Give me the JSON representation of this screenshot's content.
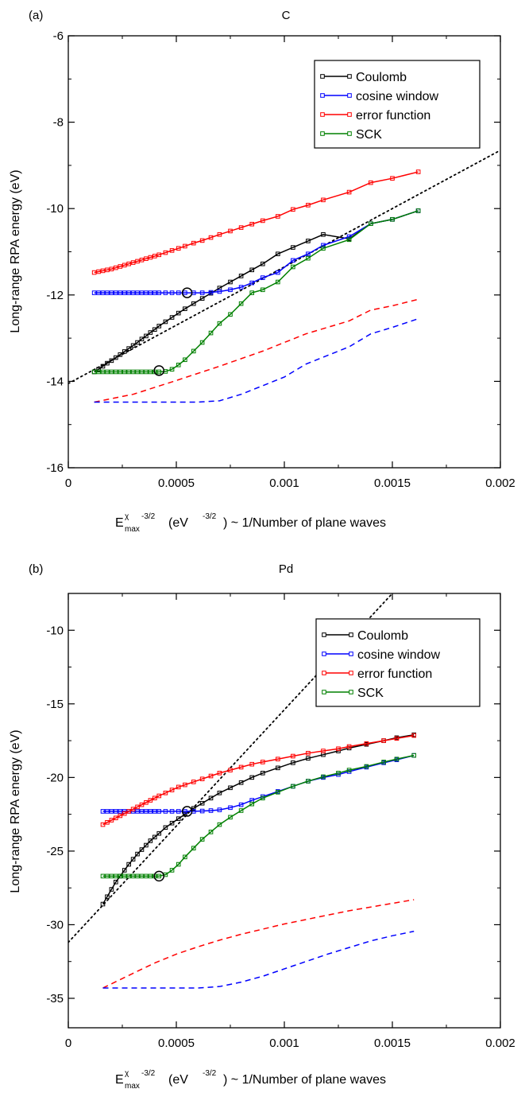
{
  "chart_data": [
    {
      "type": "line",
      "panel_label": "(a)",
      "title": "C",
      "xlabel": {
        "main": "E",
        "sup": "χ",
        "sub": "max",
        "exp": "-3/2",
        "rest": " (eV",
        "unit_exp": "-3/2",
        "tail": ") ~ 1/Number of plane waves"
      },
      "ylabel": "Long-range RPA energy (eV)",
      "xlim": [
        0,
        0.002
      ],
      "ylim": [
        -16,
        -6
      ],
      "xticks": [
        0,
        0.0005,
        0.001,
        0.0015,
        0.002
      ],
      "xtick_labels": [
        "0",
        "0.0005",
        "0.001",
        "0.0015",
        "0.002"
      ],
      "yticks": [
        -16,
        -14,
        -12,
        -10,
        -8,
        -6
      ],
      "ytick_labels": [
        "-16",
        "-14",
        "-12",
        "-10",
        "-8",
        "-6"
      ],
      "legend_position": "top-right",
      "series": [
        {
          "name": "Coulomb",
          "color": "#000000",
          "style": "solid-markers",
          "x": [
            0.00012,
            0.00014,
            0.00016,
            0.00018,
            0.0002,
            0.00022,
            0.00024,
            0.00026,
            0.00028,
            0.0003,
            0.00032,
            0.00034,
            0.00036,
            0.00038,
            0.0004,
            0.00042,
            0.00045,
            0.00048,
            0.00051,
            0.00054,
            0.00058,
            0.00062,
            0.00066,
            0.0007,
            0.00075,
            0.0008,
            0.00085,
            0.0009,
            0.00097,
            0.00104,
            0.00111,
            0.00118,
            0.0013,
            0.0014,
            0.0015,
            0.00162
          ],
          "y": [
            -13.78,
            -13.72,
            -13.65,
            -13.58,
            -13.52,
            -13.45,
            -13.38,
            -13.31,
            -13.24,
            -13.17,
            -13.1,
            -13.02,
            -12.95,
            -12.87,
            -12.8,
            -12.72,
            -12.62,
            -12.52,
            -12.42,
            -12.32,
            -12.2,
            -12.08,
            -11.96,
            -11.84,
            -11.7,
            -11.56,
            -11.42,
            -11.28,
            -11.05,
            -10.9,
            -10.75,
            -10.6,
            -10.7,
            -10.35,
            -10.25,
            -10.05
          ]
        },
        {
          "name": "cosine window",
          "color": "#0000ff",
          "style": "solid-markers",
          "x": [
            0.00012,
            0.00014,
            0.00016,
            0.00018,
            0.0002,
            0.00022,
            0.00024,
            0.00026,
            0.00028,
            0.0003,
            0.00032,
            0.00034,
            0.00036,
            0.00038,
            0.0004,
            0.00042,
            0.00045,
            0.00048,
            0.00051,
            0.00054,
            0.00058,
            0.00062,
            0.00066,
            0.0007,
            0.00075,
            0.0008,
            0.00085,
            0.0009,
            0.00097,
            0.00104,
            0.00111,
            0.00118,
            0.0013,
            0.0014,
            0.0015,
            0.00162
          ],
          "y": [
            -11.95,
            -11.95,
            -11.95,
            -11.95,
            -11.95,
            -11.95,
            -11.95,
            -11.95,
            -11.95,
            -11.95,
            -11.95,
            -11.95,
            -11.95,
            -11.95,
            -11.95,
            -11.95,
            -11.95,
            -11.95,
            -11.95,
            -11.95,
            -11.95,
            -11.95,
            -11.94,
            -11.92,
            -11.88,
            -11.82,
            -11.72,
            -11.6,
            -11.48,
            -11.2,
            -11.05,
            -10.85,
            -10.65,
            -10.35,
            -10.25,
            -10.05
          ]
        },
        {
          "name": "error function",
          "color": "#ff0000",
          "style": "solid-markers",
          "x": [
            0.00012,
            0.00014,
            0.00016,
            0.00018,
            0.0002,
            0.00022,
            0.00024,
            0.00026,
            0.00028,
            0.0003,
            0.00032,
            0.00034,
            0.00036,
            0.00038,
            0.0004,
            0.00042,
            0.00045,
            0.00048,
            0.00051,
            0.00054,
            0.00058,
            0.00062,
            0.00066,
            0.0007,
            0.00075,
            0.0008,
            0.00085,
            0.0009,
            0.00097,
            0.00104,
            0.00111,
            0.00118,
            0.0013,
            0.0014,
            0.0015,
            0.00162
          ],
          "y": [
            -11.48,
            -11.46,
            -11.44,
            -11.42,
            -11.4,
            -11.37,
            -11.34,
            -11.31,
            -11.28,
            -11.25,
            -11.22,
            -11.19,
            -11.16,
            -11.13,
            -11.1,
            -11.07,
            -11.02,
            -10.97,
            -10.92,
            -10.87,
            -10.8,
            -10.74,
            -10.67,
            -10.6,
            -10.52,
            -10.44,
            -10.36,
            -10.28,
            -10.18,
            -10.02,
            -9.92,
            -9.8,
            -9.62,
            -9.4,
            -9.3,
            -9.15
          ]
        },
        {
          "name": "SCK",
          "color": "#008000",
          "style": "solid-markers",
          "x": [
            0.00012,
            0.00014,
            0.00016,
            0.00018,
            0.0002,
            0.00022,
            0.00024,
            0.00026,
            0.00028,
            0.0003,
            0.00032,
            0.00034,
            0.00036,
            0.00038,
            0.0004,
            0.00042,
            0.00045,
            0.00048,
            0.00051,
            0.00054,
            0.00058,
            0.00062,
            0.00066,
            0.0007,
            0.00075,
            0.0008,
            0.00085,
            0.0009,
            0.00097,
            0.00104,
            0.00111,
            0.00118,
            0.0013,
            0.0014,
            0.0015,
            0.00162
          ],
          "y": [
            -13.78,
            -13.78,
            -13.78,
            -13.78,
            -13.78,
            -13.78,
            -13.78,
            -13.78,
            -13.78,
            -13.78,
            -13.78,
            -13.78,
            -13.78,
            -13.78,
            -13.78,
            -13.78,
            -13.77,
            -13.72,
            -13.62,
            -13.5,
            -13.3,
            -13.1,
            -12.88,
            -12.66,
            -12.45,
            -12.2,
            -11.95,
            -11.88,
            -11.7,
            -11.35,
            -11.15,
            -10.92,
            -10.72,
            -10.35,
            -10.25,
            -10.05
          ]
        },
        {
          "name": "",
          "color": "#ff0000",
          "style": "dashed",
          "x": [
            0.00012,
            0.0003,
            0.0005,
            0.0007,
            0.0009,
            0.001,
            0.0011,
            0.0012,
            0.0013,
            0.0014,
            0.0015,
            0.00162
          ],
          "y": [
            -14.48,
            -14.3,
            -13.98,
            -13.65,
            -13.3,
            -13.1,
            -12.9,
            -12.75,
            -12.6,
            -12.35,
            -12.25,
            -12.1
          ]
        },
        {
          "name": "",
          "color": "#0000ff",
          "style": "dashed",
          "x": [
            0.00012,
            0.0003,
            0.0005,
            0.0006,
            0.0007,
            0.0008,
            0.0009,
            0.001,
            0.0011,
            0.0012,
            0.0013,
            0.0014,
            0.0015,
            0.00162
          ],
          "y": [
            -14.48,
            -14.48,
            -14.48,
            -14.48,
            -14.45,
            -14.3,
            -14.1,
            -13.9,
            -13.6,
            -13.4,
            -13.2,
            -12.9,
            -12.75,
            -12.55
          ]
        },
        {
          "name": "",
          "color": "#000000",
          "style": "dotted",
          "x": [
            0.0,
            0.002
          ],
          "y": [
            -14.05,
            -8.65
          ]
        }
      ],
      "circles": [
        {
          "x": 0.00042,
          "y": -13.75
        },
        {
          "x": 0.00055,
          "y": -11.95
        }
      ]
    },
    {
      "type": "line",
      "panel_label": "(b)",
      "title": "Pd",
      "xlabel": {
        "main": "E",
        "sup": "χ",
        "sub": "max",
        "exp": "-3/2",
        "rest": " (eV",
        "unit_exp": "-3/2",
        "tail": ") ~ 1/Number of plane waves"
      },
      "ylabel": "Long-range RPA energy (eV)",
      "xlim": [
        0,
        0.002
      ],
      "ylim": [
        -37,
        -7.5
      ],
      "xticks": [
        0,
        0.0005,
        0.001,
        0.0015,
        0.002
      ],
      "xtick_labels": [
        "0",
        "0.0005",
        "0.001",
        "0.0015",
        "0.002"
      ],
      "yticks": [
        -35,
        -30,
        -25,
        -20,
        -15,
        -10
      ],
      "ytick_labels": [
        "-35",
        "-30",
        "-25",
        "-20",
        "-15",
        "-10"
      ],
      "legend_position": "top-right",
      "series": [
        {
          "name": "Coulomb",
          "color": "#000000",
          "style": "solid-markers",
          "x": [
            0.00016,
            0.00018,
            0.0002,
            0.00022,
            0.00024,
            0.00026,
            0.00028,
            0.0003,
            0.00032,
            0.00034,
            0.00036,
            0.00038,
            0.0004,
            0.00042,
            0.00045,
            0.00048,
            0.00051,
            0.00054,
            0.00058,
            0.00062,
            0.00066,
            0.0007,
            0.00075,
            0.0008,
            0.00085,
            0.0009,
            0.00097,
            0.00104,
            0.00111,
            0.00118,
            0.00125,
            0.0013,
            0.00138,
            0.00146,
            0.00152,
            0.0016
          ],
          "y": [
            -28.6,
            -28.1,
            -27.6,
            -27.1,
            -26.7,
            -26.3,
            -25.9,
            -25.55,
            -25.2,
            -24.9,
            -24.6,
            -24.3,
            -24.05,
            -23.8,
            -23.4,
            -23.1,
            -22.8,
            -22.5,
            -22.1,
            -21.75,
            -21.4,
            -21.05,
            -20.7,
            -20.35,
            -20.0,
            -19.7,
            -19.35,
            -19.0,
            -18.7,
            -18.45,
            -18.2,
            -18.0,
            -17.75,
            -17.5,
            -17.3,
            -17.1
          ]
        },
        {
          "name": "cosine window",
          "color": "#0000ff",
          "style": "solid-markers",
          "x": [
            0.00016,
            0.00018,
            0.0002,
            0.00022,
            0.00024,
            0.00026,
            0.00028,
            0.0003,
            0.00032,
            0.00034,
            0.00036,
            0.00038,
            0.0004,
            0.00042,
            0.00045,
            0.00048,
            0.00051,
            0.00054,
            0.00058,
            0.00062,
            0.00066,
            0.0007,
            0.00075,
            0.0008,
            0.00085,
            0.0009,
            0.00097,
            0.00104,
            0.00111,
            0.00118,
            0.00125,
            0.0013,
            0.00138,
            0.00146,
            0.00152,
            0.0016
          ],
          "y": [
            -22.3,
            -22.3,
            -22.3,
            -22.3,
            -22.3,
            -22.3,
            -22.3,
            -22.3,
            -22.3,
            -22.3,
            -22.3,
            -22.3,
            -22.3,
            -22.3,
            -22.3,
            -22.3,
            -22.3,
            -22.3,
            -22.3,
            -22.28,
            -22.25,
            -22.2,
            -22.05,
            -21.85,
            -21.55,
            -21.3,
            -20.95,
            -20.6,
            -20.25,
            -20.0,
            -19.8,
            -19.6,
            -19.3,
            -19.0,
            -18.8,
            -18.5
          ]
        },
        {
          "name": "error function",
          "color": "#ff0000",
          "style": "solid-markers",
          "x": [
            0.00016,
            0.00018,
            0.0002,
            0.00022,
            0.00024,
            0.00026,
            0.00028,
            0.0003,
            0.00032,
            0.00034,
            0.00036,
            0.00038,
            0.0004,
            0.00042,
            0.00045,
            0.00048,
            0.00051,
            0.00054,
            0.00058,
            0.00062,
            0.00066,
            0.0007,
            0.00075,
            0.0008,
            0.00085,
            0.0009,
            0.00097,
            0.00104,
            0.00111,
            0.00118,
            0.00125,
            0.0013,
            0.00138,
            0.00146,
            0.00152,
            0.0016
          ],
          "y": [
            -23.2,
            -23.05,
            -22.9,
            -22.75,
            -22.6,
            -22.45,
            -22.3,
            -22.15,
            -22.0,
            -21.85,
            -21.7,
            -21.55,
            -21.4,
            -21.25,
            -21.05,
            -20.85,
            -20.65,
            -20.5,
            -20.3,
            -20.1,
            -19.9,
            -19.7,
            -19.5,
            -19.3,
            -19.1,
            -18.95,
            -18.75,
            -18.55,
            -18.35,
            -18.2,
            -18.05,
            -17.9,
            -17.7,
            -17.5,
            -17.35,
            -17.15
          ]
        },
        {
          "name": "SCK",
          "color": "#008000",
          "style": "solid-markers",
          "x": [
            0.00016,
            0.00018,
            0.0002,
            0.00022,
            0.00024,
            0.00026,
            0.00028,
            0.0003,
            0.00032,
            0.00034,
            0.00036,
            0.00038,
            0.0004,
            0.00042,
            0.00045,
            0.00048,
            0.00051,
            0.00054,
            0.00058,
            0.00062,
            0.00066,
            0.0007,
            0.00075,
            0.0008,
            0.00085,
            0.0009,
            0.00097,
            0.00104,
            0.00111,
            0.00118,
            0.00125,
            0.0013,
            0.00138,
            0.00146,
            0.00152,
            0.0016
          ],
          "y": [
            -26.7,
            -26.7,
            -26.7,
            -26.7,
            -26.7,
            -26.7,
            -26.7,
            -26.7,
            -26.7,
            -26.7,
            -26.7,
            -26.7,
            -26.7,
            -26.7,
            -26.6,
            -26.3,
            -25.9,
            -25.4,
            -24.8,
            -24.2,
            -23.7,
            -23.2,
            -22.7,
            -22.25,
            -21.8,
            -21.4,
            -21.0,
            -20.6,
            -20.25,
            -19.95,
            -19.7,
            -19.5,
            -19.25,
            -18.95,
            -18.75,
            -18.5
          ]
        },
        {
          "name": "",
          "color": "#ff0000",
          "style": "dashed",
          "x": [
            0.00016,
            0.0003,
            0.0004,
            0.0005,
            0.0006,
            0.0007,
            0.0008,
            0.0009,
            0.001,
            0.0011,
            0.0012,
            0.0013,
            0.0014,
            0.0015,
            0.0016
          ],
          "y": [
            -34.3,
            -33.3,
            -32.6,
            -32.0,
            -31.5,
            -31.05,
            -30.65,
            -30.3,
            -29.95,
            -29.65,
            -29.35,
            -29.05,
            -28.8,
            -28.55,
            -28.3
          ]
        },
        {
          "name": "",
          "color": "#0000ff",
          "style": "dashed",
          "x": [
            0.00016,
            0.0003,
            0.0004,
            0.0005,
            0.0006,
            0.0007,
            0.0008,
            0.0009,
            0.001,
            0.0011,
            0.0012,
            0.0013,
            0.0014,
            0.0015,
            0.0016
          ],
          "y": [
            -34.3,
            -34.3,
            -34.3,
            -34.3,
            -34.3,
            -34.2,
            -33.9,
            -33.5,
            -33.0,
            -32.5,
            -32.0,
            -31.55,
            -31.1,
            -30.75,
            -30.45
          ]
        },
        {
          "name": "",
          "color": "#000000",
          "style": "dotted",
          "x": [
            0.0,
            0.0015
          ],
          "y": [
            -31.2,
            -7.5
          ]
        }
      ],
      "circles": [
        {
          "x": 0.00042,
          "y": -26.7
        },
        {
          "x": 0.00055,
          "y": -22.3
        }
      ]
    }
  ]
}
